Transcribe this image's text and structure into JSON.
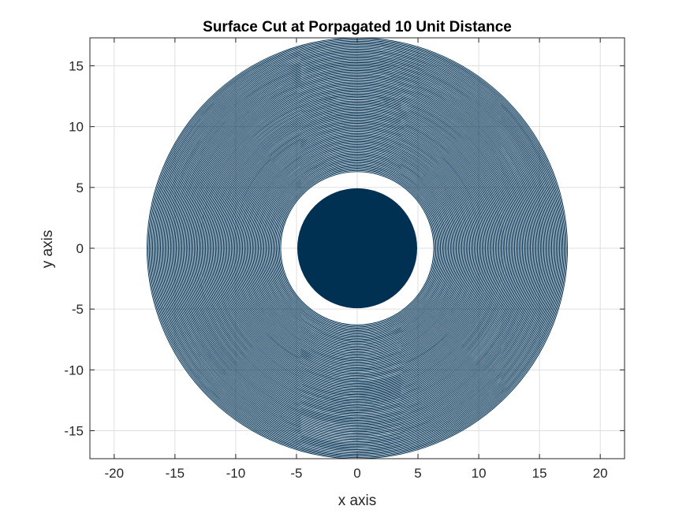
{
  "chart_data": {
    "type": "line",
    "title": "Surface Cut at Porpagated 10 Unit Distance",
    "xlabel": "x axis",
    "ylabel": "y axis",
    "xlim": [
      -22,
      22
    ],
    "ylim": [
      -17.3,
      17.3
    ],
    "xticks": [
      -20,
      -15,
      -10,
      -5,
      0,
      5,
      10,
      15,
      20
    ],
    "yticks": [
      -15,
      -10,
      -5,
      0,
      5,
      10,
      15
    ],
    "grid": true,
    "line_color": "#003153",
    "series": [
      {
        "description": "concentric circles centered at origin",
        "radius_range": [
          6.3,
          17.3
        ],
        "count": 120
      },
      {
        "description": "filled inner disk",
        "radius": 4.9
      }
    ],
    "gap_ring": [
      4.9,
      6.3
    ]
  }
}
